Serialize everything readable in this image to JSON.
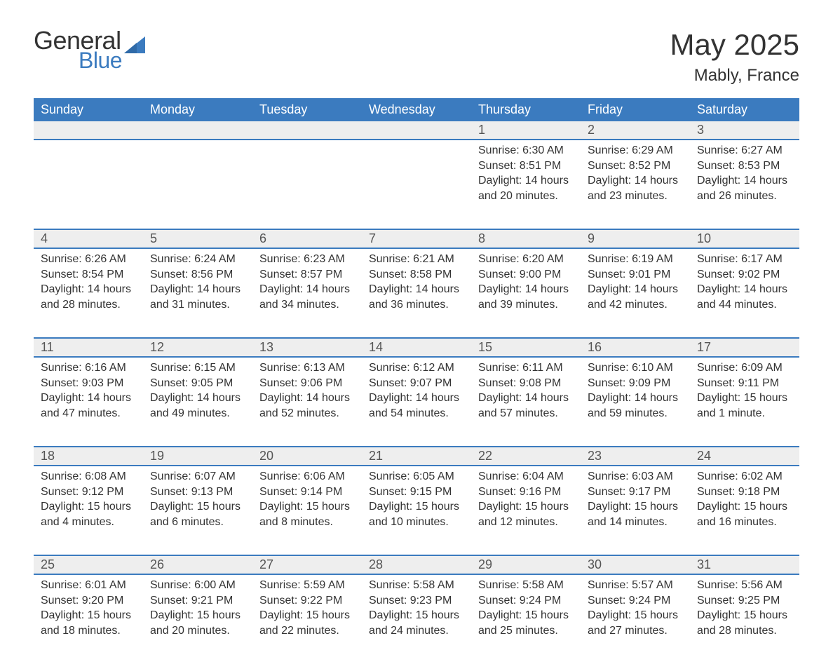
{
  "logo": {
    "text1": "General",
    "text2": "Blue",
    "shape_color": "#3b7bbf"
  },
  "header": {
    "month_title": "May 2025",
    "location": "Mably, France"
  },
  "colors": {
    "header_bg": "#3b7bbf",
    "header_fg": "#ffffff",
    "daynum_bg": "#eeeeee",
    "daynum_fg": "#555555",
    "row_divider": "#3b7bbf",
    "body_text": "#333333",
    "page_bg": "#ffffff"
  },
  "typography": {
    "month_title_fontsize": 42,
    "location_fontsize": 24,
    "weekday_fontsize": 18,
    "daynum_fontsize": 18,
    "cell_fontsize": 16,
    "font_family": "Arial"
  },
  "weekdays": [
    "Sunday",
    "Monday",
    "Tuesday",
    "Wednesday",
    "Thursday",
    "Friday",
    "Saturday"
  ],
  "weeks": [
    [
      null,
      null,
      null,
      null,
      {
        "day": "1",
        "sunrise": "6:30 AM",
        "sunset": "8:51 PM",
        "daylight": "14 hours and 20 minutes."
      },
      {
        "day": "2",
        "sunrise": "6:29 AM",
        "sunset": "8:52 PM",
        "daylight": "14 hours and 23 minutes."
      },
      {
        "day": "3",
        "sunrise": "6:27 AM",
        "sunset": "8:53 PM",
        "daylight": "14 hours and 26 minutes."
      }
    ],
    [
      {
        "day": "4",
        "sunrise": "6:26 AM",
        "sunset": "8:54 PM",
        "daylight": "14 hours and 28 minutes."
      },
      {
        "day": "5",
        "sunrise": "6:24 AM",
        "sunset": "8:56 PM",
        "daylight": "14 hours and 31 minutes."
      },
      {
        "day": "6",
        "sunrise": "6:23 AM",
        "sunset": "8:57 PM",
        "daylight": "14 hours and 34 minutes."
      },
      {
        "day": "7",
        "sunrise": "6:21 AM",
        "sunset": "8:58 PM",
        "daylight": "14 hours and 36 minutes."
      },
      {
        "day": "8",
        "sunrise": "6:20 AM",
        "sunset": "9:00 PM",
        "daylight": "14 hours and 39 minutes."
      },
      {
        "day": "9",
        "sunrise": "6:19 AM",
        "sunset": "9:01 PM",
        "daylight": "14 hours and 42 minutes."
      },
      {
        "day": "10",
        "sunrise": "6:17 AM",
        "sunset": "9:02 PM",
        "daylight": "14 hours and 44 minutes."
      }
    ],
    [
      {
        "day": "11",
        "sunrise": "6:16 AM",
        "sunset": "9:03 PM",
        "daylight": "14 hours and 47 minutes."
      },
      {
        "day": "12",
        "sunrise": "6:15 AM",
        "sunset": "9:05 PM",
        "daylight": "14 hours and 49 minutes."
      },
      {
        "day": "13",
        "sunrise": "6:13 AM",
        "sunset": "9:06 PM",
        "daylight": "14 hours and 52 minutes."
      },
      {
        "day": "14",
        "sunrise": "6:12 AM",
        "sunset": "9:07 PM",
        "daylight": "14 hours and 54 minutes."
      },
      {
        "day": "15",
        "sunrise": "6:11 AM",
        "sunset": "9:08 PM",
        "daylight": "14 hours and 57 minutes."
      },
      {
        "day": "16",
        "sunrise": "6:10 AM",
        "sunset": "9:09 PM",
        "daylight": "14 hours and 59 minutes."
      },
      {
        "day": "17",
        "sunrise": "6:09 AM",
        "sunset": "9:11 PM",
        "daylight": "15 hours and 1 minute."
      }
    ],
    [
      {
        "day": "18",
        "sunrise": "6:08 AM",
        "sunset": "9:12 PM",
        "daylight": "15 hours and 4 minutes."
      },
      {
        "day": "19",
        "sunrise": "6:07 AM",
        "sunset": "9:13 PM",
        "daylight": "15 hours and 6 minutes."
      },
      {
        "day": "20",
        "sunrise": "6:06 AM",
        "sunset": "9:14 PM",
        "daylight": "15 hours and 8 minutes."
      },
      {
        "day": "21",
        "sunrise": "6:05 AM",
        "sunset": "9:15 PM",
        "daylight": "15 hours and 10 minutes."
      },
      {
        "day": "22",
        "sunrise": "6:04 AM",
        "sunset": "9:16 PM",
        "daylight": "15 hours and 12 minutes."
      },
      {
        "day": "23",
        "sunrise": "6:03 AM",
        "sunset": "9:17 PM",
        "daylight": "15 hours and 14 minutes."
      },
      {
        "day": "24",
        "sunrise": "6:02 AM",
        "sunset": "9:18 PM",
        "daylight": "15 hours and 16 minutes."
      }
    ],
    [
      {
        "day": "25",
        "sunrise": "6:01 AM",
        "sunset": "9:20 PM",
        "daylight": "15 hours and 18 minutes."
      },
      {
        "day": "26",
        "sunrise": "6:00 AM",
        "sunset": "9:21 PM",
        "daylight": "15 hours and 20 minutes."
      },
      {
        "day": "27",
        "sunrise": "5:59 AM",
        "sunset": "9:22 PM",
        "daylight": "15 hours and 22 minutes."
      },
      {
        "day": "28",
        "sunrise": "5:58 AM",
        "sunset": "9:23 PM",
        "daylight": "15 hours and 24 minutes."
      },
      {
        "day": "29",
        "sunrise": "5:58 AM",
        "sunset": "9:24 PM",
        "daylight": "15 hours and 25 minutes."
      },
      {
        "day": "30",
        "sunrise": "5:57 AM",
        "sunset": "9:24 PM",
        "daylight": "15 hours and 27 minutes."
      },
      {
        "day": "31",
        "sunrise": "5:56 AM",
        "sunset": "9:25 PM",
        "daylight": "15 hours and 28 minutes."
      }
    ]
  ],
  "labels": {
    "sunrise": "Sunrise:",
    "sunset": "Sunset:",
    "daylight": "Daylight:"
  }
}
